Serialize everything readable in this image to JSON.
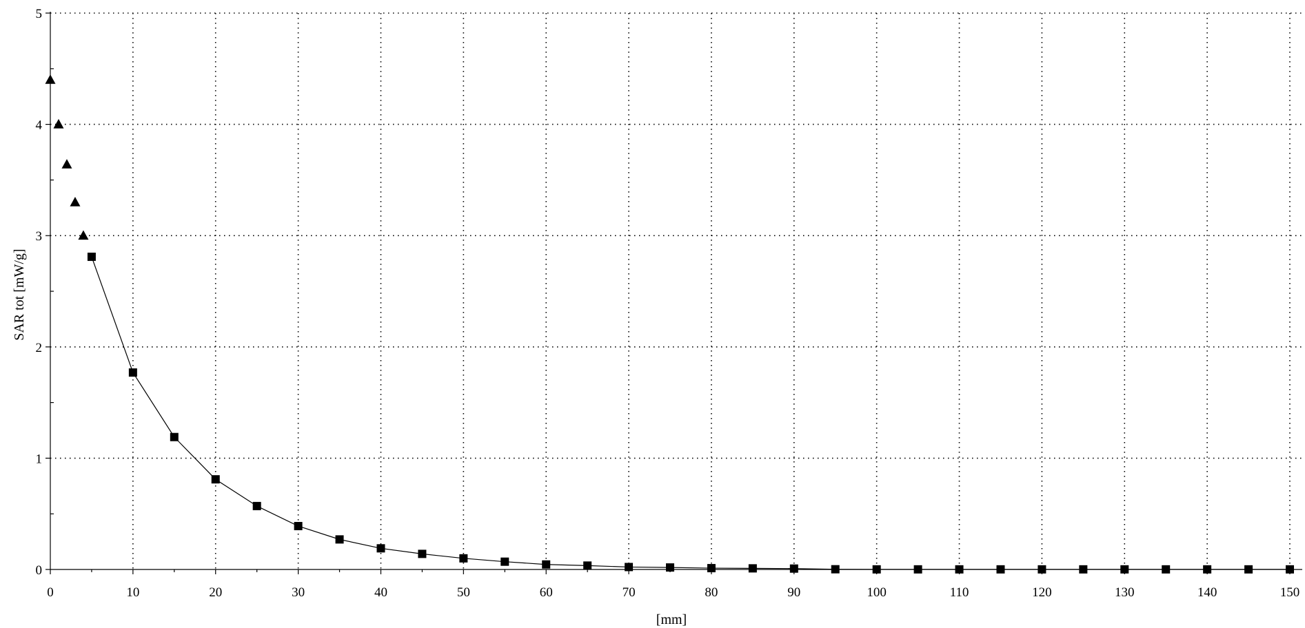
{
  "chart_data": {
    "type": "scatter",
    "xlabel": "[mm]",
    "ylabel": "SAR tot [mW/g]",
    "xlim": [
      0,
      150
    ],
    "ylim": [
      0,
      5
    ],
    "x_ticks": [
      "0",
      "10",
      "20",
      "30",
      "40",
      "50",
      "60",
      "70",
      "80",
      "90",
      "100",
      "110",
      "120",
      "130",
      "140",
      "150"
    ],
    "y_ticks": [
      "0",
      "1",
      "2",
      "3",
      "4",
      "5"
    ],
    "grid": true,
    "series": [
      {
        "marker": "triangle",
        "line": false,
        "color": "#000000",
        "x": [
          0,
          1,
          2,
          3,
          4
        ],
        "y": [
          4.4,
          4.0,
          3.64,
          3.3,
          3.0
        ]
      },
      {
        "marker": "square",
        "line": true,
        "color": "#000000",
        "x": [
          5,
          10,
          15,
          20,
          25,
          30,
          35,
          40,
          45,
          50,
          55,
          60,
          65,
          70,
          75,
          80,
          85,
          90,
          95,
          100,
          105,
          110,
          115,
          120,
          125,
          130,
          135,
          140,
          145,
          150
        ],
        "y": [
          2.81,
          1.77,
          1.19,
          0.81,
          0.57,
          0.39,
          0.27,
          0.19,
          0.14,
          0.1,
          0.07,
          0.045,
          0.035,
          0.022,
          0.018,
          0.012,
          0.01,
          0.008,
          0.002,
          0.001,
          0.001,
          0.001,
          0.001,
          0.001,
          0.001,
          0.001,
          0.001,
          0.001,
          0.001,
          0.001
        ]
      }
    ]
  }
}
